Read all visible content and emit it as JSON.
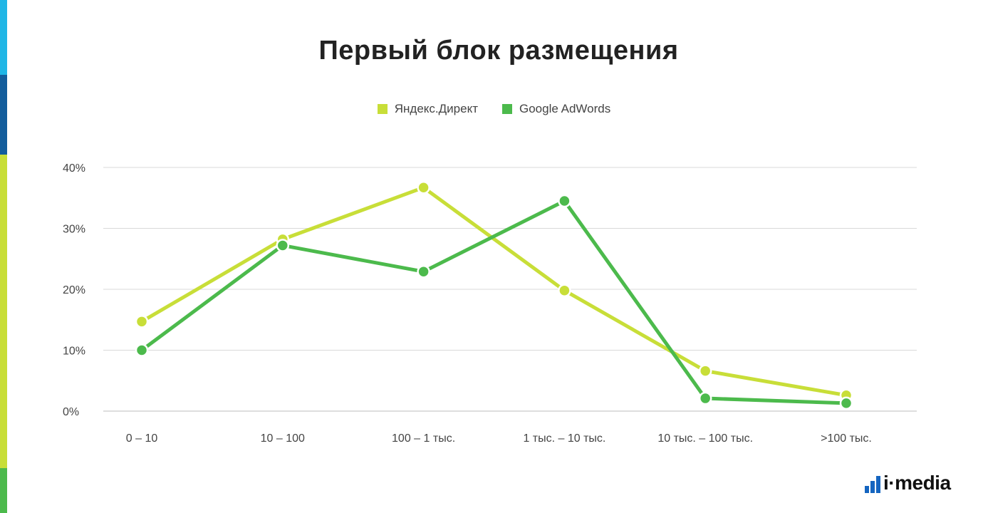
{
  "theme": {
    "strip_colors": [
      "#1fb6e6",
      "#135d9c",
      "#c8de38",
      "#4cba4c"
    ],
    "grid_color": "#d9d9d9",
    "axis_color": "#bdbdbd"
  },
  "logo": {
    "text": "i·media",
    "bar_color": "#1565c0"
  },
  "chart_data": {
    "type": "line",
    "title": "Первый блок размещения",
    "xlabel": "",
    "ylabel": "",
    "categories": [
      "0 – 10",
      "10 – 100",
      "100 – 1 тыс.",
      "1 тыс. – 10 тыс.",
      "10 тыс. – 100 тыс.",
      ">100 тыс."
    ],
    "yticks": [
      0,
      10,
      20,
      30,
      40
    ],
    "ytick_labels": [
      "0%",
      "10%",
      "20%",
      "30%",
      "40%"
    ],
    "ylim": [
      0,
      40
    ],
    "grid": true,
    "legend_position": "top-center",
    "series": [
      {
        "name": "Яндекс.Директ",
        "color": "#c8de38",
        "values": [
          14.7,
          28.2,
          36.7,
          19.8,
          6.6,
          2.6
        ]
      },
      {
        "name": "Google AdWords",
        "color": "#4cba4c",
        "values": [
          10.0,
          27.2,
          22.9,
          34.5,
          2.1,
          1.3
        ]
      }
    ]
  }
}
